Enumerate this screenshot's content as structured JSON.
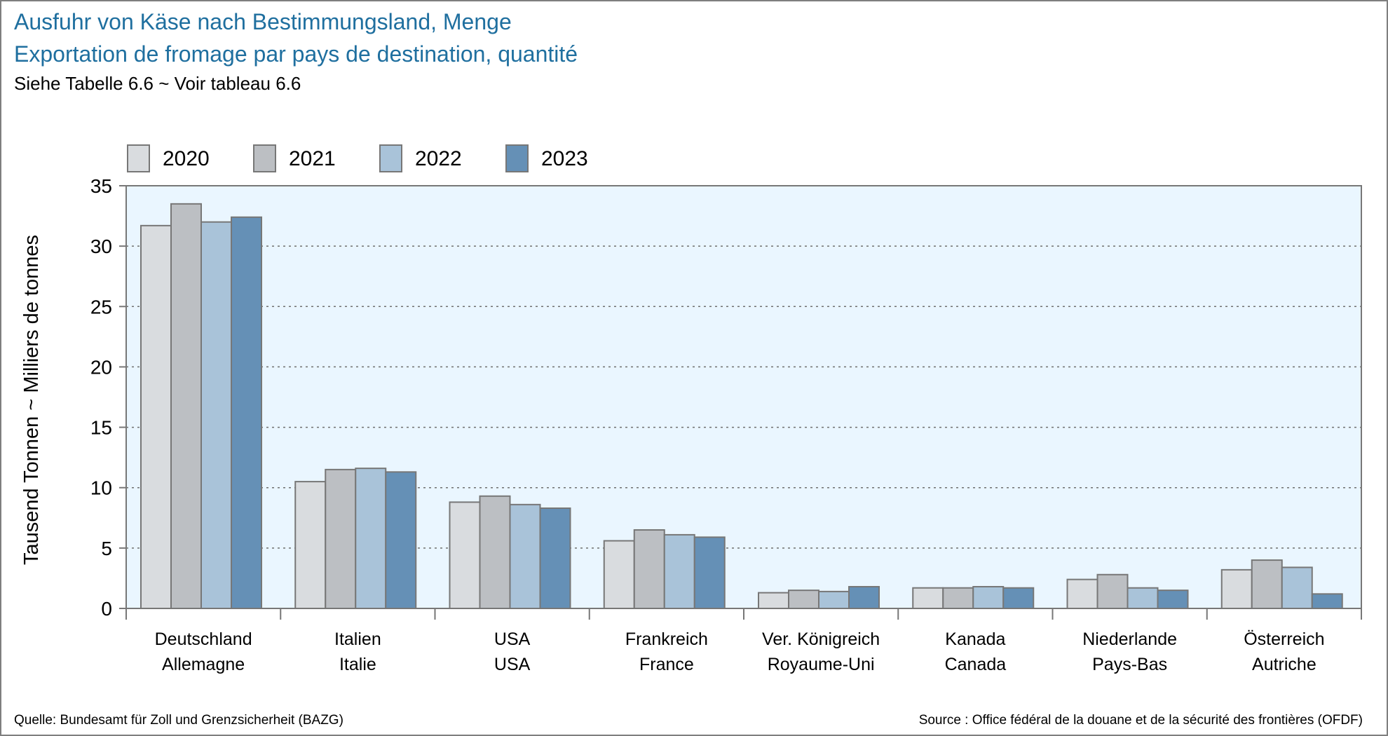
{
  "titles": {
    "de": "Ausfuhr von Käse nach Bestimmungsland, Menge",
    "fr": "Exportation de fromage par pays de destination, quantité",
    "subtitle": "Siehe Tabelle 6.6   ~   Voir tableau 6.6"
  },
  "sources": {
    "de": "Quelle: Bundesamt für Zoll und Grenzsicherheit (BAZG)",
    "fr": "Source : Office fédéral de la douane et de la sécurité des frontières (OFDF)"
  },
  "chart_data": {
    "type": "bar",
    "ylabel": "Tausend Tonnen   ~   Milliers de tonnes",
    "ylim": [
      0,
      35
    ],
    "yticks": [
      0,
      5,
      10,
      15,
      20,
      25,
      30,
      35
    ],
    "grid": "horizontal dotted",
    "legend_position": "top-left",
    "plot_background": "#eaf6ff",
    "categories": [
      {
        "de": "Deutschland",
        "fr": "Allemagne"
      },
      {
        "de": "Italien",
        "fr": "Italie"
      },
      {
        "de": "USA",
        "fr": "USA"
      },
      {
        "de": "Frankreich",
        "fr": "France"
      },
      {
        "de": "Ver. Königreich",
        "fr": "Royaume-Uni"
      },
      {
        "de": "Kanada",
        "fr": "Canada"
      },
      {
        "de": "Niederlande",
        "fr": "Pays-Bas"
      },
      {
        "de": "Österreich",
        "fr": "Autriche"
      }
    ],
    "series": [
      {
        "name": "2020",
        "color": "#d9dcdf",
        "values": [
          31.7,
          10.5,
          8.8,
          5.6,
          1.3,
          1.7,
          2.4,
          3.2
        ]
      },
      {
        "name": "2021",
        "color": "#bcbfc3",
        "values": [
          33.5,
          11.5,
          9.3,
          6.5,
          1.5,
          1.7,
          2.8,
          4.0
        ]
      },
      {
        "name": "2022",
        "color": "#a9c3d9",
        "values": [
          32.0,
          11.6,
          8.6,
          6.1,
          1.4,
          1.8,
          1.7,
          3.4
        ]
      },
      {
        "name": "2023",
        "color": "#6590b6",
        "values": [
          32.4,
          11.3,
          8.3,
          5.9,
          1.8,
          1.7,
          1.5,
          1.2
        ]
      }
    ]
  }
}
